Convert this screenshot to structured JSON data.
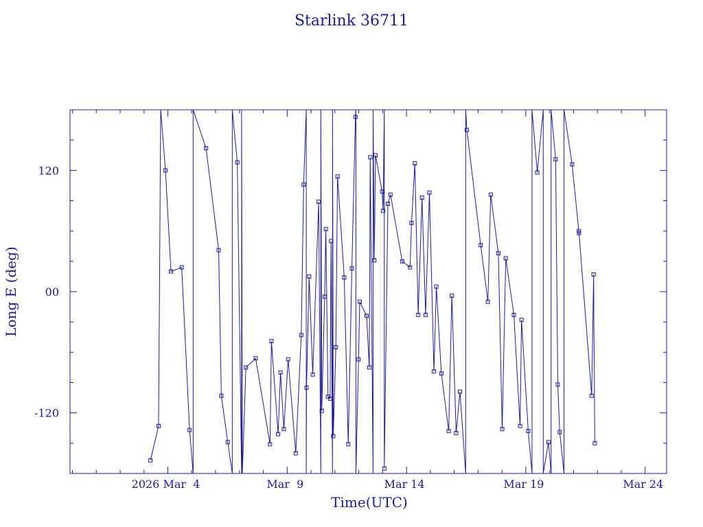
{
  "chart_data": {
    "type": "line",
    "title": "Starlink 36711",
    "xlabel": "Time(UTC)",
    "ylabel": "Long E (deg)",
    "x_unit": "days since 2026 Feb 28 00:00 UTC",
    "xlim": [
      -0.1,
      24.9
    ],
    "ylim": [
      -180,
      180
    ],
    "xtick_labels": [
      {
        "x": 4,
        "label": "2026 Mar  4"
      },
      {
        "x": 9,
        "label": "Mar  9"
      },
      {
        "x": 14,
        "label": "Mar 14"
      },
      {
        "x": 19,
        "label": "Mar 19"
      },
      {
        "x": 24,
        "label": "Mar 24"
      }
    ],
    "yticks": [
      -120,
      0,
      120
    ],
    "ytick_labels": [
      "-120",
      "00",
      "120"
    ],
    "grid": false,
    "color": "#1a1a8c",
    "series": [
      {
        "name": "",
        "points": [
          [
            3.27,
            -167
          ],
          [
            3.61,
            -133
          ],
          [
            3.7,
            180
          ],
          [
            3.9,
            120
          ],
          [
            4.13,
            20
          ],
          [
            4.58,
            24
          ],
          [
            4.91,
            -137
          ],
          [
            5.06,
            -180
          ],
          [
            5.06,
            180
          ],
          [
            5.6,
            142
          ],
          [
            6.13,
            41
          ],
          [
            6.24,
            -103
          ],
          [
            6.51,
            -149
          ],
          [
            6.7,
            -180
          ],
          [
            6.7,
            180
          ],
          [
            6.91,
            128
          ],
          [
            7.09,
            -180
          ],
          [
            7.09,
            180
          ],
          [
            7.12,
            -180
          ],
          [
            7.27,
            -75
          ],
          [
            7.68,
            -66
          ],
          [
            8.28,
            -151
          ],
          [
            8.34,
            -49
          ],
          [
            8.62,
            -141
          ],
          [
            8.72,
            -80
          ],
          [
            8.86,
            -136
          ],
          [
            9.04,
            -67
          ],
          [
            9.36,
            -160
          ],
          [
            9.59,
            -43
          ],
          [
            9.69,
            106
          ],
          [
            9.8,
            180
          ],
          [
            9.8,
            -180
          ],
          [
            9.81,
            -95
          ],
          [
            9.92,
            15
          ],
          [
            10.07,
            -82
          ],
          [
            10.32,
            89
          ],
          [
            10.41,
            -180
          ],
          [
            10.41,
            180
          ],
          [
            10.45,
            -118
          ],
          [
            10.57,
            -5
          ],
          [
            10.62,
            62
          ],
          [
            10.71,
            -104
          ],
          [
            10.8,
            -106
          ],
          [
            10.84,
            50
          ],
          [
            10.9,
            -180
          ],
          [
            10.9,
            180
          ],
          [
            10.93,
            -143
          ],
          [
            11.04,
            -55
          ],
          [
            11.11,
            114
          ],
          [
            11.39,
            14
          ],
          [
            11.56,
            -151
          ],
          [
            11.71,
            23
          ],
          [
            11.86,
            173
          ],
          [
            11.88,
            180
          ],
          [
            11.88,
            -180
          ],
          [
            11.99,
            -67
          ],
          [
            12.04,
            -10
          ],
          [
            12.33,
            -24
          ],
          [
            12.44,
            -75
          ],
          [
            12.48,
            133
          ],
          [
            12.6,
            -180
          ],
          [
            12.6,
            180
          ],
          [
            12.65,
            31
          ],
          [
            12.7,
            135
          ],
          [
            12.98,
            99
          ],
          [
            13.02,
            80
          ],
          [
            13.07,
            180
          ],
          [
            13.07,
            -175
          ],
          [
            13.22,
            87
          ],
          [
            13.33,
            96
          ],
          [
            13.82,
            30
          ],
          [
            14.15,
            24
          ],
          [
            14.21,
            68
          ],
          [
            14.35,
            127
          ],
          [
            14.49,
            -23
          ],
          [
            14.65,
            93
          ],
          [
            14.8,
            -23
          ],
          [
            14.96,
            98
          ],
          [
            15.15,
            -79
          ],
          [
            15.25,
            5
          ],
          [
            15.46,
            -81
          ],
          [
            15.77,
            -138
          ],
          [
            15.9,
            -4
          ],
          [
            16.08,
            -140
          ],
          [
            16.24,
            -99
          ],
          [
            16.48,
            -180
          ],
          [
            16.48,
            180
          ],
          [
            16.53,
            160
          ],
          [
            17.11,
            46
          ],
          [
            17.41,
            -10
          ],
          [
            17.53,
            96
          ],
          [
            17.85,
            38
          ],
          [
            18.01,
            -136
          ],
          [
            18.16,
            33
          ],
          [
            18.5,
            -23
          ],
          [
            18.76,
            -133
          ],
          [
            18.82,
            -28
          ],
          [
            19.1,
            -138
          ],
          [
            19.26,
            -180
          ],
          [
            19.26,
            180
          ],
          [
            19.48,
            118
          ],
          [
            19.73,
            180
          ],
          [
            19.73,
            -180
          ],
          [
            19.95,
            -149
          ],
          [
            20.06,
            -180
          ],
          [
            20.06,
            180
          ],
          [
            20.25,
            131
          ],
          [
            20.34,
            -92
          ],
          [
            20.42,
            -139
          ],
          [
            20.6,
            -180
          ],
          [
            20.6,
            180
          ],
          [
            20.94,
            126
          ],
          [
            21.22,
            60
          ],
          [
            21.23,
            58
          ],
          [
            21.76,
            -103
          ],
          [
            21.84,
            17
          ],
          [
            21.89,
            -150
          ]
        ]
      }
    ]
  }
}
